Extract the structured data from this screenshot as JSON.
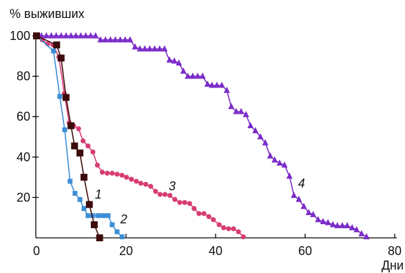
{
  "chart_data": {
    "type": "line",
    "ylabel": "% выживших",
    "xlabel": "Дни",
    "xlim": [
      0,
      80
    ],
    "ylim": [
      0,
      100
    ],
    "xticks": [
      0,
      20,
      40,
      60,
      80
    ],
    "yticks": [
      20,
      40,
      60,
      80,
      100
    ],
    "grid": false,
    "series": [
      {
        "name": "1",
        "color": "#3d0b0b",
        "marker": "square",
        "points": [
          [
            0,
            100
          ],
          [
            4.5,
            95.5
          ],
          [
            5.5,
            89
          ],
          [
            6.6,
            69.5
          ],
          [
            7.7,
            55.5
          ],
          [
            8.5,
            45.5
          ],
          [
            9.7,
            42
          ],
          [
            10.6,
            30
          ],
          [
            11.8,
            16.5
          ],
          [
            12.9,
            6.5
          ],
          [
            14.1,
            0
          ]
        ]
      },
      {
        "name": "2",
        "color": "#3b8ed6",
        "marker": "square",
        "points": [
          [
            0,
            100
          ],
          [
            3.8,
            92.5
          ],
          [
            5.2,
            70
          ],
          [
            6.3,
            53.5
          ],
          [
            7.5,
            28
          ],
          [
            8.6,
            22
          ],
          [
            9.7,
            19
          ],
          [
            10.6,
            14.5
          ],
          [
            11.5,
            11
          ],
          [
            12.6,
            11
          ],
          [
            13.8,
            11
          ],
          [
            14.9,
            11
          ],
          [
            16,
            11
          ],
          [
            16.9,
            6.5
          ],
          [
            18,
            3
          ],
          [
            19.1,
            0.5
          ]
        ]
      },
      {
        "name": "3",
        "color": "#d83c72",
        "marker": "circle",
        "points": [
          [
            0,
            100
          ],
          [
            1.3,
            98
          ],
          [
            2.5,
            96
          ],
          [
            3.7,
            95.5
          ],
          [
            5,
            89.5
          ],
          [
            6.2,
            71.5
          ],
          [
            7.3,
            57
          ],
          [
            8.3,
            55.5
          ],
          [
            9.4,
            54
          ],
          [
            10.4,
            48
          ],
          [
            11.5,
            45.5
          ],
          [
            12.6,
            42.5
          ],
          [
            13.6,
            36
          ],
          [
            14.7,
            32.5
          ],
          [
            15.8,
            32
          ],
          [
            16.9,
            32
          ],
          [
            18,
            31.5
          ],
          [
            19.1,
            31
          ],
          [
            20.1,
            30
          ],
          [
            21.2,
            29
          ],
          [
            22.3,
            28
          ],
          [
            23.3,
            27
          ],
          [
            24.4,
            26.5
          ],
          [
            25.5,
            25.5
          ],
          [
            26.6,
            23
          ],
          [
            27.6,
            21.5
          ],
          [
            28.7,
            21.5
          ],
          [
            29.8,
            21
          ],
          [
            30.9,
            19
          ],
          [
            32,
            17.5
          ],
          [
            33.1,
            17.5
          ],
          [
            34.2,
            17
          ],
          [
            35.2,
            14.5
          ],
          [
            36.3,
            12
          ],
          [
            37.4,
            12
          ],
          [
            38.5,
            10.5
          ],
          [
            39.5,
            9
          ],
          [
            40.8,
            6.5
          ],
          [
            41.8,
            5
          ],
          [
            42.9,
            4.5
          ],
          [
            44,
            4.5
          ],
          [
            45.1,
            3
          ],
          [
            46.2,
            0.5
          ]
        ]
      },
      {
        "name": "4",
        "color": "#7b2cc9",
        "marker": "triangle",
        "points": [
          [
            0,
            100
          ],
          [
            1.1,
            100
          ],
          [
            2.2,
            100
          ],
          [
            3.3,
            100
          ],
          [
            4.4,
            100
          ],
          [
            5.5,
            100
          ],
          [
            6.6,
            100
          ],
          [
            7.7,
            100
          ],
          [
            8.8,
            100
          ],
          [
            9.9,
            100
          ],
          [
            11,
            100
          ],
          [
            12.1,
            100
          ],
          [
            13.2,
            100
          ],
          [
            14.3,
            98
          ],
          [
            15.4,
            98
          ],
          [
            16.5,
            98
          ],
          [
            17.6,
            98
          ],
          [
            18.7,
            98
          ],
          [
            19.8,
            98
          ],
          [
            20.9,
            98
          ],
          [
            22,
            94.5
          ],
          [
            23.1,
            93.5
          ],
          [
            24.2,
            93.5
          ],
          [
            25.3,
            93.5
          ],
          [
            26.4,
            93.5
          ],
          [
            27.5,
            93.5
          ],
          [
            28.6,
            93.5
          ],
          [
            29.7,
            88
          ],
          [
            30.8,
            87.5
          ],
          [
            31.8,
            86.5
          ],
          [
            32.8,
            82.5
          ],
          [
            33.8,
            80
          ],
          [
            34.9,
            80
          ],
          [
            36,
            80
          ],
          [
            37.1,
            80
          ],
          [
            38.2,
            76
          ],
          [
            39.2,
            75.5
          ],
          [
            40.3,
            75.5
          ],
          [
            41.4,
            75.5
          ],
          [
            42.5,
            73
          ],
          [
            43.5,
            65
          ],
          [
            44.6,
            62.5
          ],
          [
            45.7,
            62.5
          ],
          [
            46.8,
            61
          ],
          [
            47.8,
            55.5
          ],
          [
            48.9,
            53
          ],
          [
            50,
            50
          ],
          [
            51.1,
            47
          ],
          [
            52.2,
            40.5
          ],
          [
            53.2,
            38.5
          ],
          [
            54.3,
            37
          ],
          [
            55.4,
            36
          ],
          [
            56.5,
            30.5
          ],
          [
            57.5,
            21
          ],
          [
            58.6,
            19
          ],
          [
            59.7,
            15.5
          ],
          [
            60.8,
            12.5
          ],
          [
            61.8,
            11.5
          ],
          [
            62.9,
            9
          ],
          [
            64,
            8
          ],
          [
            65.1,
            7.5
          ],
          [
            66.2,
            6.5
          ],
          [
            67.2,
            6
          ],
          [
            68.3,
            6
          ],
          [
            69.4,
            6
          ],
          [
            70.5,
            5
          ],
          [
            71.5,
            4
          ],
          [
            72.6,
            2
          ],
          [
            73.7,
            0.5
          ]
        ]
      }
    ]
  }
}
